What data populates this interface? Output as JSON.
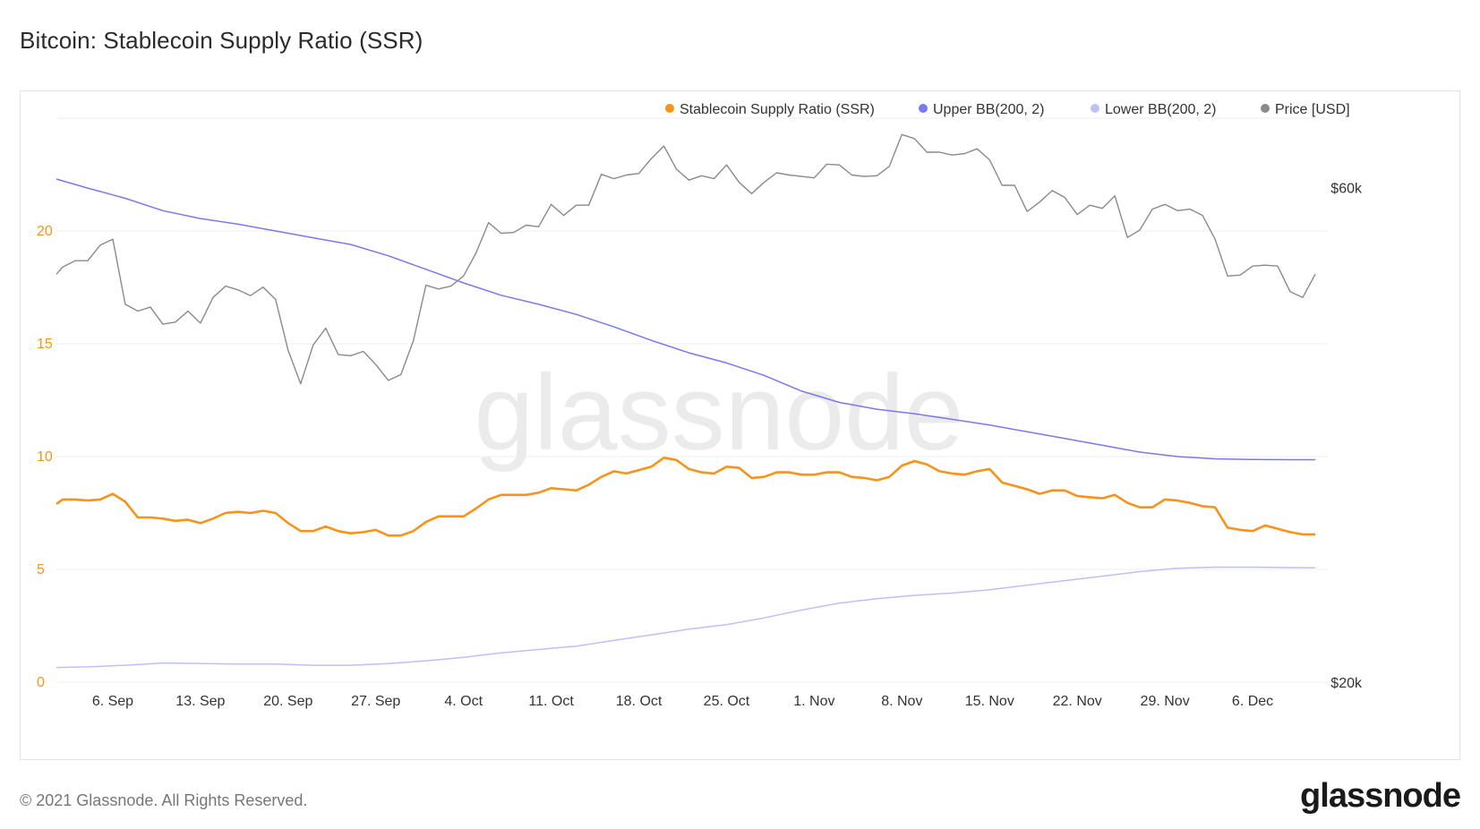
{
  "page": {
    "title": "Bitcoin: Stablecoin Supply Ratio (SSR)",
    "copyright": "© 2021 Glassnode. All Rights Reserved.",
    "logo_text": "glassnode",
    "watermark_text": "glassnode"
  },
  "chart_data": {
    "type": "line",
    "title": "Bitcoin: Stablecoin Supply Ratio (SSR)",
    "grid": true,
    "legend_position": "top-right",
    "x_ticks": [
      "6. Sep",
      "13. Sep",
      "20. Sep",
      "27. Sep",
      "4. Oct",
      "11. Oct",
      "18. Oct",
      "25. Oct",
      "1. Nov",
      "8. Nov",
      "15. Nov",
      "22. Nov",
      "29. Nov",
      "6. Dec"
    ],
    "x_tick_days": [
      6,
      13,
      20,
      27,
      34,
      41,
      48,
      55,
      62,
      69,
      76,
      83,
      90,
      97
    ],
    "x_range": [
      1.5,
      103
    ],
    "y_left": {
      "range": [
        0,
        25
      ],
      "ticks": [
        "0",
        "5",
        "10",
        "15",
        "20"
      ],
      "tick_values": [
        0,
        5,
        10,
        15,
        20
      ],
      "color": "#f7931a"
    },
    "y_right": {
      "range": [
        20000,
        70000
      ],
      "ticks": [
        "$20k",
        "$60k"
      ],
      "tick_values": [
        20000,
        60000
      ],
      "scale": "log",
      "color": "#333333"
    },
    "series": [
      {
        "name": "Stablecoin Supply Ratio (SSR)",
        "axis": "left",
        "color": "#f7931a",
        "x": [
          1.5,
          2,
          3,
          4,
          5,
          6,
          7,
          8,
          9,
          10,
          11,
          12,
          13,
          14,
          15,
          16,
          17,
          18,
          19,
          20,
          21,
          22,
          23,
          24,
          25,
          26,
          27,
          28,
          29,
          30,
          31,
          32,
          33,
          34,
          35,
          36,
          37,
          38,
          39,
          40,
          41,
          42,
          43,
          44,
          45,
          46,
          47,
          48,
          49,
          50,
          51,
          52,
          53,
          54,
          55,
          56,
          57,
          58,
          59,
          60,
          61,
          62,
          63,
          64,
          65,
          66,
          67,
          68,
          69,
          70,
          71,
          72,
          73,
          74,
          75,
          76,
          77,
          78,
          79,
          80,
          81,
          82,
          83,
          84,
          85,
          86,
          87,
          88,
          89,
          90,
          91,
          92,
          93,
          94,
          95,
          96,
          97,
          98,
          99,
          100,
          101,
          102
        ],
        "y": [
          7.9,
          8.1,
          8.1,
          8.05,
          8.1,
          8.35,
          8.0,
          7.3,
          7.3,
          7.25,
          7.15,
          7.2,
          7.05,
          7.25,
          7.5,
          7.55,
          7.5,
          7.6,
          7.5,
          7.05,
          6.7,
          6.7,
          6.9,
          6.7,
          6.6,
          6.65,
          6.75,
          6.5,
          6.5,
          6.7,
          7.1,
          7.35,
          7.35,
          7.35,
          7.7,
          8.1,
          8.3,
          8.3,
          8.3,
          8.4,
          8.6,
          8.55,
          8.5,
          8.75,
          9.1,
          9.35,
          9.25,
          9.4,
          9.55,
          9.95,
          9.85,
          9.45,
          9.3,
          9.25,
          9.55,
          9.5,
          9.05,
          9.1,
          9.3,
          9.3,
          9.2,
          9.2,
          9.3,
          9.3,
          9.1,
          9.05,
          8.95,
          9.1,
          9.6,
          9.8,
          9.65,
          9.35,
          9.25,
          9.2,
          9.35,
          9.45,
          8.85,
          8.7,
          8.55,
          8.35,
          8.5,
          8.5,
          8.25,
          8.2,
          8.15,
          8.3,
          7.95,
          7.75,
          7.75,
          8.1,
          8.05,
          7.95,
          7.8,
          7.75,
          6.85,
          6.75,
          6.7,
          6.95,
          6.8,
          6.65,
          6.55,
          6.55
        ]
      },
      {
        "name": "Upper BB(200, 2)",
        "axis": "left",
        "color": "#7a78f0",
        "x": [
          1.5,
          4,
          7,
          10,
          13,
          16,
          19,
          22,
          25,
          28,
          31,
          34,
          37,
          40,
          43,
          46,
          49,
          52,
          55,
          58,
          61,
          64,
          67,
          70,
          73,
          76,
          79,
          82,
          85,
          88,
          91,
          94,
          97,
          100,
          102
        ],
        "y": [
          22.3,
          21.9,
          21.45,
          20.9,
          20.55,
          20.3,
          20.0,
          19.7,
          19.4,
          18.9,
          18.3,
          17.7,
          17.15,
          16.75,
          16.3,
          15.75,
          15.15,
          14.6,
          14.15,
          13.6,
          12.9,
          12.4,
          12.1,
          11.9,
          11.65,
          11.4,
          11.1,
          10.8,
          10.5,
          10.2,
          10.0,
          9.9,
          9.87,
          9.86,
          9.86
        ]
      },
      {
        "name": "Lower BB(200, 2)",
        "axis": "left",
        "color": "#c0bff8",
        "x": [
          1.5,
          4,
          7,
          10,
          13,
          16,
          19,
          22,
          25,
          28,
          31,
          34,
          37,
          40,
          43,
          46,
          49,
          52,
          55,
          58,
          61,
          64,
          67,
          70,
          73,
          76,
          79,
          82,
          85,
          88,
          91,
          94,
          97,
          100,
          102
        ],
        "y": [
          0.65,
          0.68,
          0.75,
          0.85,
          0.83,
          0.8,
          0.8,
          0.75,
          0.75,
          0.82,
          0.95,
          1.1,
          1.3,
          1.45,
          1.6,
          1.85,
          2.1,
          2.35,
          2.55,
          2.85,
          3.2,
          3.5,
          3.7,
          3.85,
          3.95,
          4.1,
          4.3,
          4.5,
          4.7,
          4.9,
          5.05,
          5.1,
          5.1,
          5.08,
          5.07
        ]
      },
      {
        "name": "Price [USD]",
        "axis": "right",
        "color": "#8a8a8a",
        "x": [
          1.5,
          2,
          3,
          4,
          5,
          6,
          7,
          8,
          9,
          10,
          11,
          12,
          13,
          14,
          15,
          16,
          17,
          18,
          19,
          20,
          21,
          22,
          23,
          24,
          25,
          26,
          27,
          28,
          29,
          30,
          31,
          32,
          33,
          34,
          35,
          36,
          37,
          38,
          39,
          40,
          41,
          42,
          43,
          44,
          45,
          46,
          47,
          48,
          49,
          50,
          51,
          52,
          53,
          54,
          55,
          56,
          57,
          58,
          59,
          60,
          61,
          62,
          63,
          64,
          65,
          66,
          67,
          68,
          69,
          70,
          71,
          72,
          73,
          74,
          75,
          76,
          77,
          78,
          79,
          80,
          81,
          82,
          83,
          84,
          85,
          86,
          87,
          88,
          89,
          90,
          91,
          92,
          93,
          94,
          95,
          96,
          97,
          98,
          99,
          100,
          101,
          102
        ],
        "y": [
          49500,
          50300,
          51000,
          51000,
          52800,
          53500,
          46300,
          45600,
          46000,
          44300,
          44500,
          45600,
          44400,
          47000,
          48200,
          47800,
          47200,
          48100,
          46800,
          41800,
          38800,
          42300,
          43900,
          41400,
          41300,
          41700,
          40500,
          39100,
          39600,
          42700,
          48300,
          47900,
          48200,
          49300,
          51900,
          55500,
          54200,
          54300,
          55200,
          55000,
          57800,
          56400,
          57700,
          57700,
          61800,
          61200,
          61700,
          61900,
          64000,
          65800,
          62500,
          61000,
          61600,
          61200,
          63100,
          60700,
          59200,
          60700,
          62000,
          61700,
          61500,
          61300,
          63200,
          63100,
          61700,
          61500,
          61600,
          62900,
          67500,
          66900,
          64900,
          64900,
          64500,
          64700,
          65400,
          63800,
          60300,
          60300,
          56900,
          58100,
          59600,
          58700,
          56500,
          57700,
          57300,
          58900,
          53700,
          54600,
          57200,
          57800,
          57000,
          57200,
          56400,
          53500,
          49300,
          49400,
          50400,
          50500,
          50400,
          47600,
          47000,
          49500
        ]
      }
    ]
  }
}
